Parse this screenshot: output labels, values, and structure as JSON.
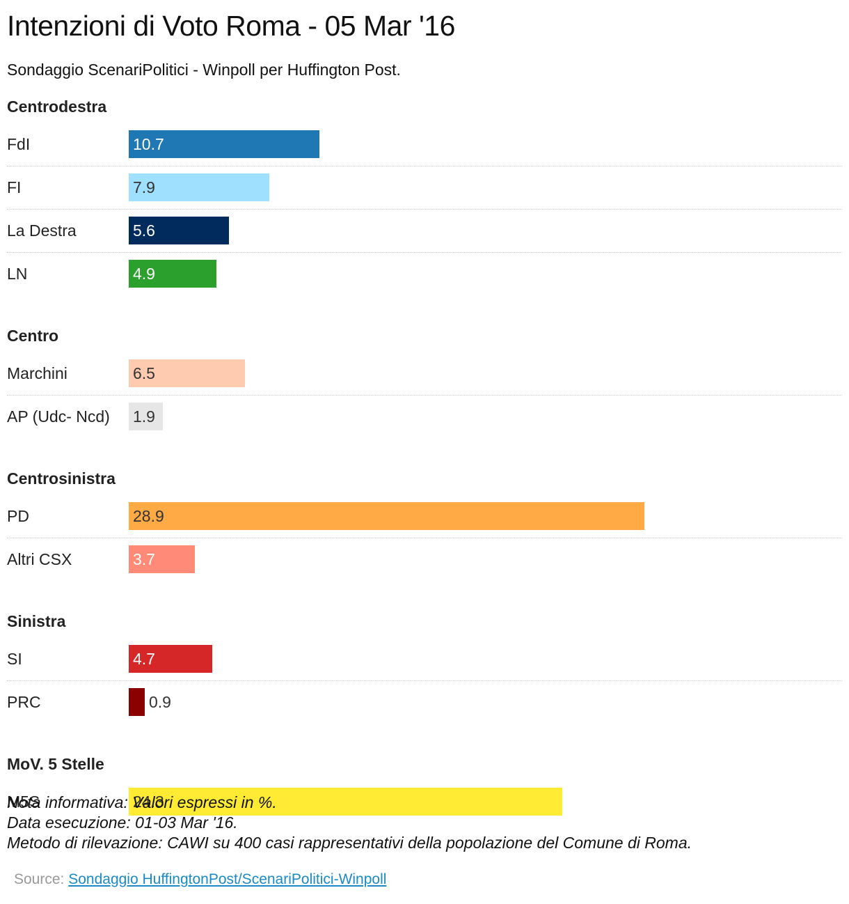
{
  "title": "Intenzioni di Voto Roma - 05 Mar '16",
  "subtitle": "Sondaggio ScenariPolitici - Winpoll per Huffington Post.",
  "chart_data": {
    "type": "bar",
    "orientation": "horizontal",
    "unit": "%",
    "groups": [
      {
        "name": "Centrodestra",
        "items": [
          {
            "label": "FdI",
            "value": 10.7,
            "display": "10.7",
            "color": "#1f77b4",
            "text_color": "#ffffff"
          },
          {
            "label": "FI",
            "value": 7.9,
            "display": "7.9",
            "color": "#9fdfff",
            "text_color": "#333333"
          },
          {
            "label": "La Destra",
            "value": 5.6,
            "display": "5.6",
            "color": "#002b5c",
            "text_color": "#ffffff"
          },
          {
            "label": "LN",
            "value": 4.9,
            "display": "4.9",
            "color": "#2ca02c",
            "text_color": "#ffffff"
          }
        ]
      },
      {
        "name": "Centro",
        "items": [
          {
            "label": "Marchini",
            "value": 6.5,
            "display": "6.5",
            "color": "#ffcbb0",
            "text_color": "#333333"
          },
          {
            "label": "AP (Udc- Ncd)",
            "value": 1.9,
            "display": "1.9",
            "color": "#e6e6e6",
            "text_color": "#333333"
          }
        ]
      },
      {
        "name": "Centrosinistra",
        "items": [
          {
            "label": "PD",
            "value": 28.9,
            "display": "28.9",
            "color": "#ffaa44",
            "text_color": "#333333"
          },
          {
            "label": "Altri CSX",
            "value": 3.7,
            "display": "3.7",
            "color": "#ff8a78",
            "text_color": "#ffffff"
          }
        ]
      },
      {
        "name": "Sinistra",
        "items": [
          {
            "label": "SI",
            "value": 4.7,
            "display": "4.7",
            "color": "#d62728",
            "text_color": "#ffffff"
          },
          {
            "label": "PRC",
            "value": 0.9,
            "display": "0.9",
            "color": "#8b0000",
            "text_color": "#333333"
          }
        ]
      },
      {
        "name": "MoV. 5 Stelle",
        "items": [
          {
            "label": "M5S",
            "value": 24.3,
            "display": "24.3",
            "color": "#ffeb33",
            "text_color": "#333333"
          }
        ]
      }
    ]
  },
  "notes": [
    "Nota informativa: Valori espressi in %.",
    "Data esecuzione: 01-03 Mar '16.",
    "Metodo di rilevazione: CAWI su 400 casi rappresentativi della popolazione del Comune di Roma."
  ],
  "source": {
    "prefix": "Source: ",
    "link_text": "Sondaggio HuffingtonPost/ScenariPolitici-Winpoll"
  }
}
